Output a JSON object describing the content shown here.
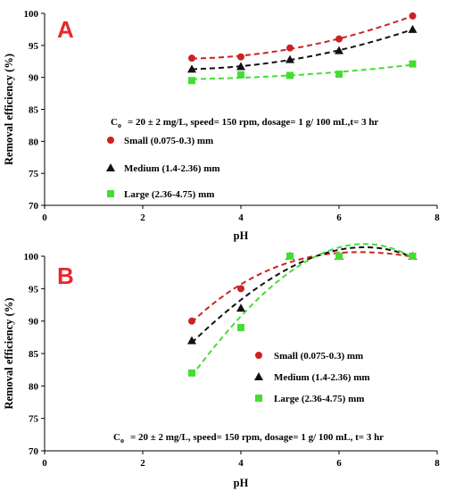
{
  "chart_data": [
    {
      "type": "scatter",
      "panel_label": "A",
      "xlabel": "pH",
      "ylabel": "Removal efficiency (%)",
      "xlim": [
        0,
        8
      ],
      "ylim": [
        70,
        100
      ],
      "xticks": [
        0,
        2,
        4,
        6,
        8
      ],
      "yticks": [
        70,
        75,
        80,
        85,
        90,
        95,
        100
      ],
      "trendlines": "dashed polynomial fits",
      "grid": false,
      "legend_position": "center-left",
      "conditions_prefix": "C",
      "conditions_subscript": "o",
      "conditions_text": "= 20 ± 2 mg/L, speed= 150 rpm, dosage= 1 g/ 100 mL,t= 3 hr",
      "x": [
        3,
        4,
        5,
        6,
        7.5
      ],
      "series": [
        {
          "name": "Small (0.075-0.3) mm",
          "marker": "circle",
          "color": "#cc2222",
          "values": [
            93,
            93.2,
            94.6,
            96,
            99.6
          ]
        },
        {
          "name": "Medium (1.4-2.36) mm",
          "marker": "triangle",
          "color": "#111111",
          "values": [
            91.3,
            91.7,
            92.8,
            94.2,
            97.5
          ]
        },
        {
          "name": "Large (2.36-4.75) mm",
          "marker": "square",
          "color": "#44dd33",
          "values": [
            89.5,
            90.4,
            90.3,
            90.5,
            92.1
          ]
        }
      ]
    },
    {
      "type": "scatter",
      "panel_label": "B",
      "xlabel": "pH",
      "ylabel": "Removal efficiency (%)",
      "xlim": [
        0,
        8
      ],
      "ylim": [
        70,
        100
      ],
      "xticks": [
        0,
        2,
        4,
        6,
        8
      ],
      "yticks": [
        70,
        75,
        80,
        85,
        90,
        95,
        100
      ],
      "trendlines": "dashed polynomial fits",
      "grid": false,
      "legend_position": "center-right",
      "conditions_prefix": "C",
      "conditions_subscript": "o",
      "conditions_text": "= 20 ± 2 mg/L, speed= 150 rpm, dosage= 1 g/ 100 mL, t= 3 hr",
      "x": [
        3,
        4,
        5,
        6,
        7.5
      ],
      "series": [
        {
          "name": "Small (0.075-0.3) mm",
          "marker": "circle",
          "color": "#cc2222",
          "values": [
            90,
            95,
            100,
            100,
            100
          ]
        },
        {
          "name": "Medium (1.4-2.36) mm",
          "marker": "triangle",
          "color": "#111111",
          "values": [
            87,
            92,
            100,
            100,
            100
          ]
        },
        {
          "name": "Large (2.36-4.75) mm",
          "marker": "square",
          "color": "#44dd33",
          "values": [
            82,
            89,
            100,
            100,
            100
          ]
        }
      ]
    }
  ]
}
